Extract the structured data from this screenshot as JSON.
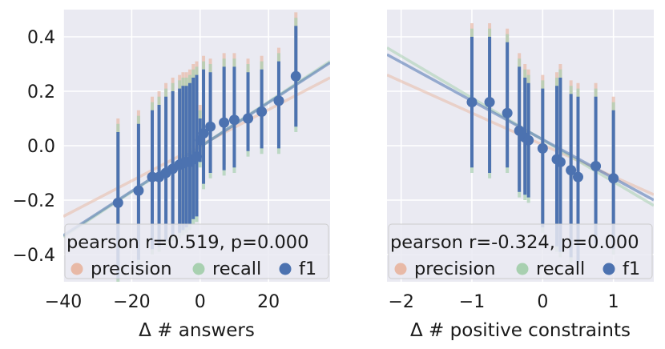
{
  "chart_data": [
    {
      "type": "scatter",
      "xlabel": "Δ # answers",
      "ylabel": "",
      "xlim": [
        -40,
        38
      ],
      "ylim": [
        -0.5,
        0.5
      ],
      "xticks": [
        {
          "v": -40,
          "label": "−40"
        },
        {
          "v": -20,
          "label": "−20"
        },
        {
          "v": 0,
          "label": "0"
        },
        {
          "v": 20,
          "label": "20"
        }
      ],
      "yticks": [
        {
          "v": -0.4,
          "label": "−0.4"
        },
        {
          "v": -0.2,
          "label": "−0.2"
        },
        {
          "v": 0.0,
          "label": "0.0"
        },
        {
          "v": 0.2,
          "label": "0.2"
        },
        {
          "v": 0.4,
          "label": "0.4"
        }
      ],
      "grid": true,
      "annotation": "pearson r=0.519, p=0.000",
      "legend_position": "bottom",
      "legend": [
        {
          "name": "precision",
          "color": "#e8b9a6"
        },
        {
          "name": "recall",
          "color": "#a8d0b0"
        },
        {
          "name": "f1",
          "color": "#4c72b0"
        }
      ],
      "series": [
        {
          "name": "f1",
          "x": [
            -24,
            -18,
            -14,
            -12,
            -10,
            -8,
            -6,
            -5,
            -4,
            -3,
            -2,
            -1,
            0,
            1,
            3,
            7,
            10,
            14,
            18,
            23,
            28
          ],
          "y": [
            -0.21,
            -0.165,
            -0.115,
            -0.115,
            -0.1,
            -0.085,
            -0.07,
            -0.065,
            -0.06,
            -0.06,
            -0.05,
            -0.04,
            0.02,
            0.045,
            0.07,
            0.085,
            0.095,
            0.1,
            0.125,
            0.165,
            0.255
          ],
          "ci_low": [
            -0.49,
            -0.42,
            -0.38,
            -0.37,
            -0.35,
            -0.33,
            -0.32,
            -0.31,
            -0.3,
            -0.29,
            -0.27,
            -0.26,
            -0.06,
            -0.14,
            -0.1,
            -0.09,
            -0.08,
            -0.02,
            -0.01,
            -0.01,
            0.07
          ],
          "ci_high": [
            0.05,
            0.08,
            0.13,
            0.15,
            0.18,
            0.2,
            0.21,
            0.22,
            0.22,
            0.23,
            0.25,
            0.26,
            0.1,
            0.28,
            0.27,
            0.29,
            0.29,
            0.27,
            0.28,
            0.31,
            0.44
          ]
        }
      ],
      "regression": [
        {
          "name": "precision",
          "x": [
            -40,
            38
          ],
          "y": [
            -0.26,
            0.25
          ]
        },
        {
          "name": "recall",
          "x": [
            -40,
            38
          ],
          "y": [
            -0.335,
            0.31
          ]
        },
        {
          "name": "f1",
          "x": [
            -40,
            38
          ],
          "y": [
            -0.33,
            0.305
          ]
        }
      ]
    },
    {
      "type": "scatter",
      "xlabel": "Δ # positive constraints",
      "ylabel": "",
      "xlim": [
        -2.2,
        1.57
      ],
      "ylim": [
        -0.5,
        0.5
      ],
      "xticks": [
        {
          "v": -2,
          "label": "−2"
        },
        {
          "v": -1,
          "label": "−1"
        },
        {
          "v": 0,
          "label": "0"
        },
        {
          "v": 1,
          "label": "1"
        }
      ],
      "yticks": [],
      "grid": true,
      "annotation": "pearson r=-0.324, p=0.000",
      "legend_position": "bottom",
      "legend": [
        {
          "name": "precision",
          "color": "#e8b9a6"
        },
        {
          "name": "recall",
          "color": "#a8d0b0"
        },
        {
          "name": "f1",
          "color": "#4c72b0"
        }
      ],
      "series": [
        {
          "name": "f1",
          "x": [
            -1.0,
            -0.75,
            -0.5,
            -0.33,
            -0.25,
            -0.2,
            0.0,
            0.2,
            0.25,
            0.4,
            0.5,
            0.75,
            1.0
          ],
          "y": [
            0.16,
            0.16,
            0.12,
            0.055,
            0.03,
            0.02,
            -0.01,
            -0.05,
            -0.06,
            -0.09,
            -0.115,
            -0.075,
            -0.12
          ],
          "ci_low": [
            -0.08,
            -0.1,
            -0.08,
            -0.17,
            -0.18,
            -0.19,
            -0.3,
            -0.37,
            -0.39,
            -0.41,
            -0.43,
            -0.36,
            -0.38
          ],
          "ci_high": [
            0.4,
            0.4,
            0.38,
            0.29,
            0.25,
            0.23,
            0.21,
            0.22,
            0.25,
            0.19,
            0.18,
            0.18,
            0.13
          ]
        }
      ],
      "regression": [
        {
          "name": "precision",
          "x": [
            -2.2,
            1.57
          ],
          "y": [
            0.26,
            -0.18
          ]
        },
        {
          "name": "recall",
          "x": [
            -2.2,
            1.57
          ],
          "y": [
            0.36,
            -0.22
          ]
        },
        {
          "name": "f1",
          "x": [
            -2.2,
            1.57
          ],
          "y": [
            0.335,
            -0.2
          ]
        }
      ]
    }
  ]
}
